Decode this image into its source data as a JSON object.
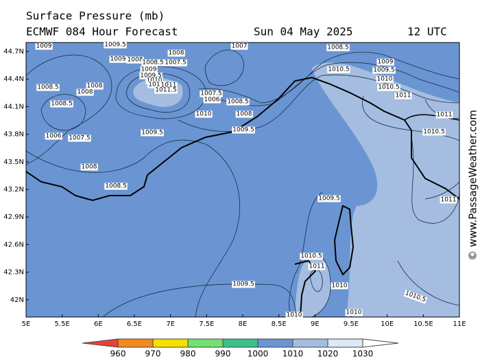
{
  "header": {
    "title": "Surface Pressure (mb)",
    "model": "ECMWF 084 Hour Forecast",
    "date": "Sun 04 May 2025",
    "time": "12 UTC"
  },
  "map": {
    "lat_labels": [
      "44.7N",
      "44.4N",
      "44.1N",
      "43.8N",
      "43.5N",
      "43.2N",
      "42.9N",
      "42.6N",
      "42.3N",
      "42N"
    ],
    "lon_labels": [
      "5E",
      "5.5E",
      "6E",
      "6.5E",
      "7E",
      "7.5E",
      "8E",
      "8.5E",
      "9E",
      "9.5E",
      "10E",
      "10.5E",
      "11E"
    ],
    "contour_labels": [
      "1009",
      "1009.5",
      "1007",
      "1008.5",
      "1009",
      "1008",
      "1008",
      "1008.5",
      "1007.5",
      "1009",
      "1009.5",
      "1010",
      "1010.5",
      "1011",
      "1011.5",
      "1008.5",
      "1008",
      "1008",
      "1007.5",
      "1006",
      "1008.5",
      "1010",
      "1008",
      "1009.5",
      "1008.5",
      "1006",
      "1007.5",
      "1009.5",
      "1008",
      "1008.5",
      "1010.5",
      "1009",
      "1009.5",
      "1010",
      "1010.5",
      "1011",
      "1011",
      "1010.5",
      "1009.5",
      "1011",
      "1010.5",
      "1011",
      "1010",
      "1009.5",
      "1010",
      "1010",
      "1010.5"
    ],
    "watermark": "© www.PassageWeather.com"
  },
  "colorbar": {
    "ticks": [
      960,
      970,
      980,
      990,
      1000,
      1010,
      1020,
      1030
    ],
    "colors": [
      "#e8403c",
      "#f28a1e",
      "#f5e000",
      "#72e072",
      "#3cbf8c",
      "#6a95d2",
      "#a4bde0",
      "#dde7f5",
      "#ffffff"
    ]
  }
}
